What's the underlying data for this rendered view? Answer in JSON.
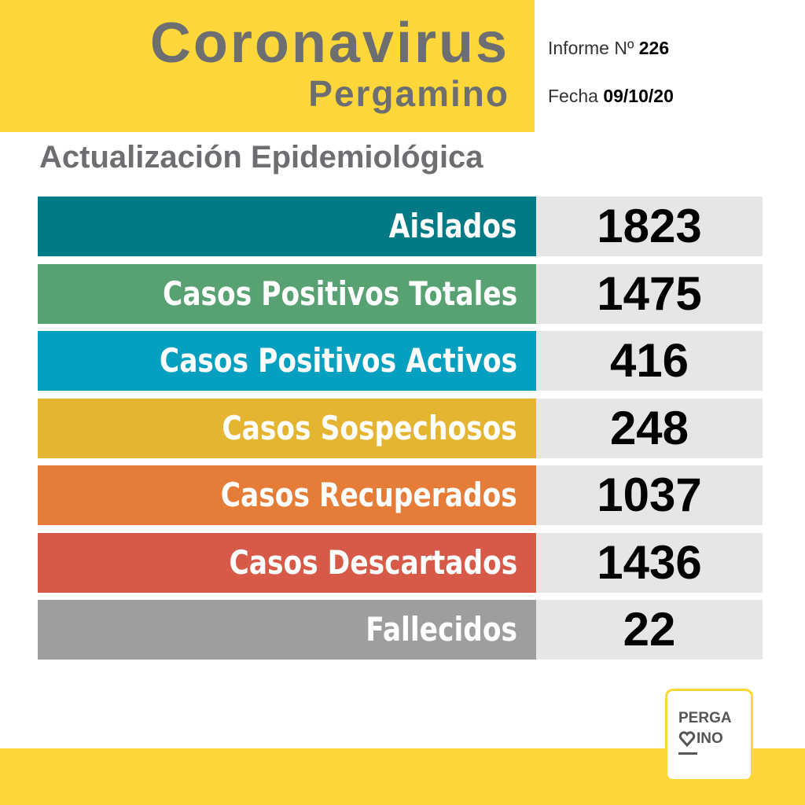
{
  "header": {
    "title": "Coronavirus",
    "subtitle": "Pergamino",
    "report_label": "Informe Nº",
    "report_number": "226",
    "date_label": "Fecha",
    "date": "09/10/20"
  },
  "section_title": "Actualización Epidemiológica",
  "rows": [
    {
      "label": "Aislados",
      "value": 1823
    },
    {
      "label": "Casos Positivos Totales",
      "value": 1475
    },
    {
      "label": "Casos Positivos Activos",
      "value": 416
    },
    {
      "label": "Casos Sospechosos",
      "value": 248
    },
    {
      "label": "Casos Recuperados",
      "value": 1037
    },
    {
      "label": "Casos Descartados",
      "value": 1436
    },
    {
      "label": "Fallecidos",
      "value": 22
    }
  ],
  "logo": {
    "line1": "PERGA",
    "line2": "INO"
  }
}
